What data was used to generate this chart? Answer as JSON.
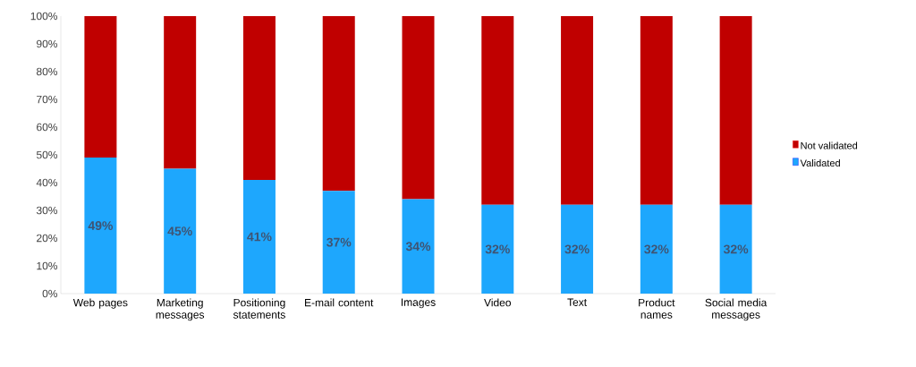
{
  "chart_data": {
    "type": "bar",
    "stacked": true,
    "categories": [
      "Web pages",
      "Marketing messages",
      "Positioning statements",
      "E-mail content",
      "Images",
      "Video",
      "Text",
      "Product names",
      "Social media messages"
    ],
    "series": [
      {
        "name": "Validated",
        "color": "#1ea7fd",
        "values": [
          49,
          45,
          41,
          37,
          34,
          32,
          32,
          32,
          32
        ],
        "value_labels": [
          "49%",
          "45%",
          "41%",
          "37%",
          "34%",
          "32%",
          "32%",
          "32%",
          "32%"
        ]
      },
      {
        "name": "Not validated",
        "color": "#c00000",
        "values": [
          51,
          55,
          59,
          63,
          66,
          68,
          68,
          68,
          68
        ]
      }
    ],
    "ylim": [
      0,
      100
    ],
    "yticks": [
      {
        "value": 0,
        "label": "0%"
      },
      {
        "value": 10,
        "label": "10%"
      },
      {
        "value": 20,
        "label": "20%"
      },
      {
        "value": 30,
        "label": "30%"
      },
      {
        "value": 40,
        "label": "40%"
      },
      {
        "value": 50,
        "label": "50%"
      },
      {
        "value": 60,
        "label": "60%"
      },
      {
        "value": 70,
        "label": "70%"
      },
      {
        "value": 80,
        "label": "80%"
      },
      {
        "value": 90,
        "label": "90%"
      },
      {
        "value": 100,
        "label": "100%"
      }
    ],
    "legend": "right"
  }
}
